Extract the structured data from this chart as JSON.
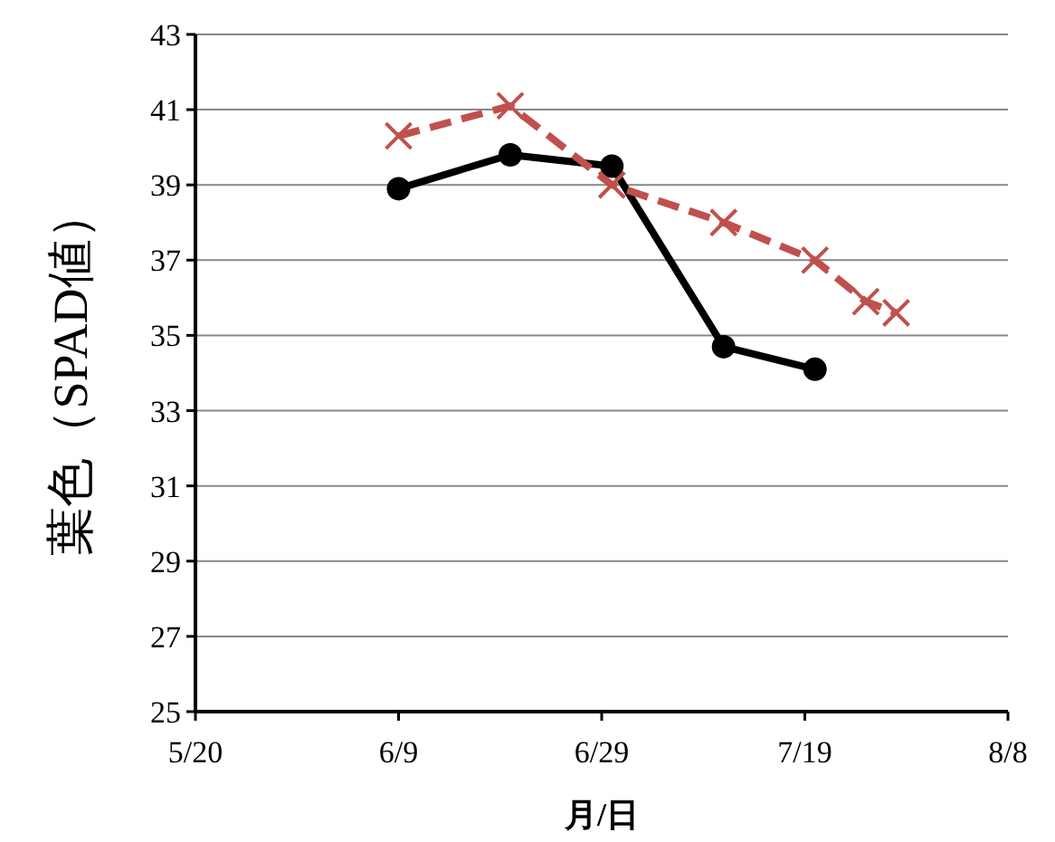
{
  "chart_data": {
    "type": "line",
    "xlabel": "月/日",
    "ylabel": "葉色（SPAD値）",
    "xlim": [
      "--05-20",
      "--08-08"
    ],
    "xticks": [
      {
        "value": "--05-20",
        "label": "5/20"
      },
      {
        "value": "--06-09",
        "label": "6/9"
      },
      {
        "value": "--06-29",
        "label": "6/29"
      },
      {
        "value": "--07-19",
        "label": "7/19"
      },
      {
        "value": "--08-08",
        "label": "8/8"
      }
    ],
    "ylim": [
      25,
      43
    ],
    "yticks": [
      25,
      27,
      29,
      31,
      33,
      35,
      37,
      39,
      41,
      43
    ],
    "grid": "y",
    "series": [
      {
        "color": "#000000",
        "marker": "circle",
        "line_style": "solid",
        "x": [
          "--06-09",
          "--06-20",
          "--06-30",
          "--07-11",
          "--07-20"
        ],
        "values": [
          38.9,
          39.8,
          39.5,
          34.7,
          34.1
        ]
      },
      {
        "color": "#c0504d",
        "marker": "cross",
        "line_style": "dashed",
        "x": [
          "--06-09",
          "--06-20",
          "--06-30",
          "--07-11",
          "--07-20",
          "--07-25",
          "--07-28"
        ],
        "values": [
          40.3,
          41.1,
          39.0,
          38.0,
          37.0,
          35.9,
          35.6
        ]
      }
    ]
  }
}
